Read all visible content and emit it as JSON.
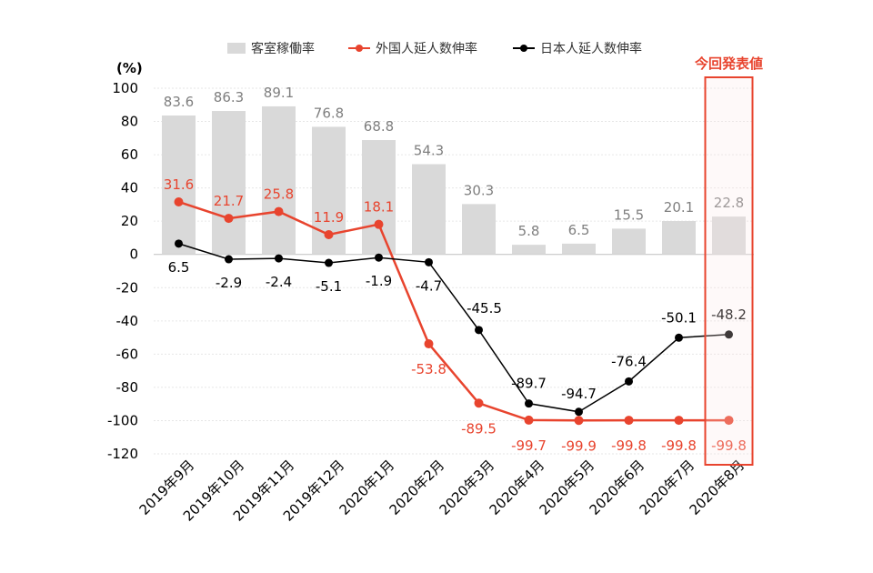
{
  "chart_data": {
    "type": "bar",
    "unit_label": "(%)",
    "categories": [
      "2019年9月",
      "2019年10月",
      "2019年11月",
      "2019年12月",
      "2020年1月",
      "2020年2月",
      "2020年3月",
      "2020年4月",
      "2020年5月",
      "2020年6月",
      "2020年7月",
      "2020年8月"
    ],
    "ylim": [
      -120,
      100
    ],
    "yticks": [
      100,
      80,
      60,
      40,
      20,
      0,
      -20,
      -40,
      -60,
      -80,
      -100,
      -120
    ],
    "grid": true,
    "legend_position": "top",
    "series": [
      {
        "name": "客室稼働率",
        "kind": "bar",
        "color": "#d9d9d9",
        "label_color": "#7f7f7f",
        "values": [
          83.6,
          86.3,
          89.1,
          76.8,
          68.8,
          54.3,
          30.3,
          5.8,
          6.5,
          15.5,
          20.1,
          22.8
        ]
      },
      {
        "name": "外国人延人数伸率",
        "kind": "line",
        "color": "#e8442e",
        "label_color": "#e8442e",
        "values": [
          31.6,
          21.7,
          25.8,
          11.9,
          18.1,
          -53.8,
          -89.5,
          -99.7,
          -99.9,
          -99.8,
          -99.8,
          -99.8
        ]
      },
      {
        "name": "日本人延人数伸率",
        "kind": "line",
        "color": "#000000",
        "label_color": "#000000",
        "values": [
          6.5,
          -2.9,
          -2.4,
          -5.1,
          -1.9,
          -4.7,
          -45.5,
          -89.7,
          -94.7,
          -76.4,
          -50.1,
          -48.2
        ]
      }
    ],
    "annotation": {
      "text": "今回発表値",
      "highlight_index": 11,
      "color": "#e8442e"
    }
  }
}
